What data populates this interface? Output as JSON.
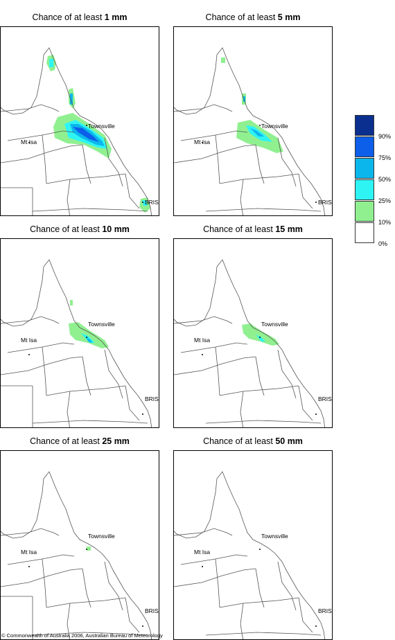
{
  "panels": [
    {
      "prefix": "Chance of at least ",
      "amount": "1 mm"
    },
    {
      "prefix": "Chance of at least ",
      "amount": "5 mm"
    },
    {
      "prefix": "Chance of at least ",
      "amount": "10 mm"
    },
    {
      "prefix": "Chance of at least ",
      "amount": "15 mm"
    },
    {
      "prefix": "Chance of at least ",
      "amount": "25 mm"
    },
    {
      "prefix": "Chance of at least ",
      "amount": "50 mm"
    }
  ],
  "cities": {
    "townsville": "Townsville",
    "mt_isa": "Mt Isa",
    "brisbane": "BRIS"
  },
  "legend": {
    "labels": [
      "90%",
      "75%",
      "50%",
      "25%",
      "10%",
      "0%"
    ],
    "colors": [
      "#0a2f8f",
      "#0d5ee8",
      "#0bb6ec",
      "#2ef4f4",
      "#90f090",
      "#ffffff"
    ]
  },
  "copyright": "© Commonwealth of Australia 2006, Australian Bureau of Meteorology"
}
